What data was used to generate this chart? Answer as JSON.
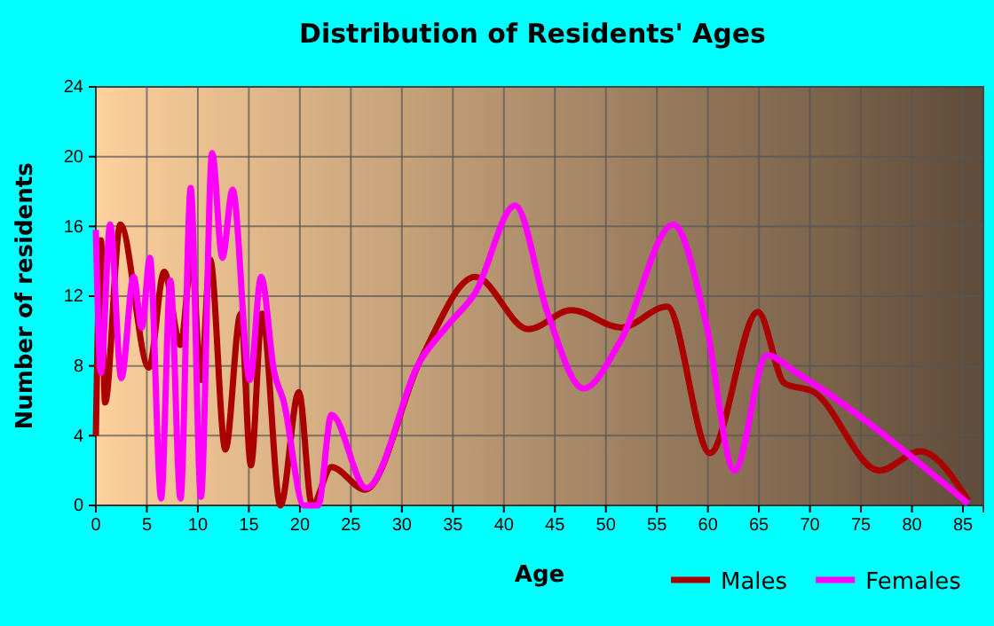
{
  "chart_data": {
    "type": "line",
    "title": "Distribution of Residents' Ages",
    "xlabel": "Age",
    "ylabel": "Number of residents",
    "xlim": [
      0,
      87
    ],
    "xticks": [
      0,
      5,
      10,
      15,
      20,
      25,
      30,
      35,
      40,
      45,
      50,
      55,
      60,
      65,
      70,
      75,
      80,
      85
    ],
    "ylim": [
      0,
      24
    ],
    "yticks": [
      0,
      4,
      8,
      12,
      16,
      20,
      24
    ],
    "grid": true,
    "legend": "bottom right",
    "marker": "none",
    "line_style": "solid",
    "series": [
      {
        "name": "Males",
        "color": "#aa0000",
        "x": [
          0,
          0.5,
          0.9,
          2.4,
          5.2,
          6.7,
          8.3,
          9.4,
          10.3,
          11.2,
          12.7,
          14.2,
          15.2,
          16.3,
          18.1,
          19.9,
          21.2,
          23.1,
          26.4,
          31.8,
          37.2,
          42.4,
          46.6,
          51.5,
          56,
          60.2,
          64.9,
          67.5,
          70.4,
          76.8,
          80.8,
          85.5
        ],
        "values": [
          4,
          15.2,
          5.9,
          16.1,
          7.9,
          13.4,
          9.2,
          14.2,
          7.2,
          14.1,
          3.2,
          11,
          2.3,
          11,
          0,
          6.5,
          0,
          2.2,
          0.9,
          8.3,
          13.1,
          10.1,
          11.2,
          10.2,
          11.4,
          3,
          11.1,
          7,
          6.5,
          2,
          3.1,
          0.3
        ]
      },
      {
        "name": "Females",
        "color": "#ff00ff",
        "x": [
          0,
          0.5,
          1.4,
          2.5,
          3.7,
          4.5,
          5.3,
          6.4,
          7.3,
          8.3,
          9.3,
          10.3,
          11.4,
          12.4,
          13.4,
          15.1,
          16.2,
          17.5,
          18.4,
          20.4,
          21.8,
          23.1,
          26.5,
          31.8,
          34.6,
          37.2,
          41.1,
          44.3,
          47.8,
          51.4,
          56.6,
          59.8,
          62.6,
          65.8,
          68.7,
          85.5
        ],
        "values": [
          15.8,
          7.6,
          16.1,
          7.3,
          13.1,
          10.2,
          14.2,
          0.4,
          12.9,
          0.4,
          18.2,
          0.5,
          20.2,
          14.2,
          18.1,
          7.2,
          13.1,
          7.6,
          6,
          0,
          0,
          5.2,
          1,
          8.3,
          10.4,
          12.2,
          17.2,
          11,
          6.7,
          9.4,
          16.1,
          10.5,
          2,
          8.6,
          7.6,
          0.1
        ]
      }
    ]
  }
}
